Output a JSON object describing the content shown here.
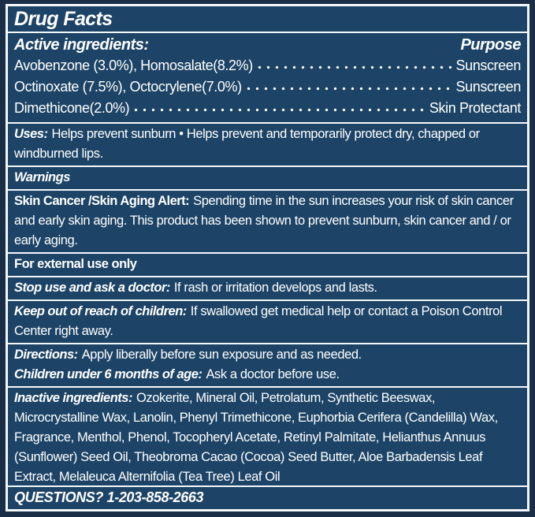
{
  "colors": {
    "bg": "#1d4466",
    "frame": "#1a2f47",
    "rule": "#f4f8fb",
    "text": "#ffffff"
  },
  "title": "Drug Facts",
  "active": {
    "heading": "Active ingredients:",
    "purpose_heading": "Purpose",
    "rows": [
      {
        "name": "Avobenzone (3.0%), Homosalate(8.2%)",
        "purpose": "Sunscreen"
      },
      {
        "name": "Octinoxate (7.5%), Octocrylene(7.0%)",
        "purpose": "Sunscreen"
      },
      {
        "name": "Dimethicone(2.0%)",
        "purpose": "Skin Protectant"
      }
    ]
  },
  "uses": {
    "label": "Uses:",
    "text": "Helps prevent sunburn • Helps prevent and temporarily protect dry, chapped or windburned lips."
  },
  "warnings": {
    "heading": "Warnings"
  },
  "skin_alert": {
    "label": "Skin Cancer /Skin Aging Alert:",
    "text": "Spending time in the sun increases your risk of skin cancer and early skin aging. This product has been shown to prevent sunburn, skin cancer and / or early aging."
  },
  "external_use": {
    "text": "For external use only"
  },
  "stop_use": {
    "label": "Stop use and ask a doctor:",
    "text": "If rash or irritation develops and lasts."
  },
  "keep_out": {
    "label": "Keep out of reach of children:",
    "text": "If swallowed get medical help or contact a Poison Control Center right away."
  },
  "directions": {
    "label": "Directions:",
    "text": "Apply liberally before sun exposure and as needed."
  },
  "children": {
    "label": "Children under 6 months of age:",
    "text": "Ask a doctor before use."
  },
  "inactive": {
    "label": "Inactive ingredients:",
    "text": "Ozokerite, Mineral Oil, Petrolatum, Synthetic Beeswax, Microcrystalline Wax, Lanolin, Phenyl Trimethicone, Euphorbia Cerifera (Candelilla) Wax, Fragrance, Menthol, Phenol, Tocopheryl Acetate, Retinyl Palmitate, Helianthus Annuus (Sunflower) Seed Oil, Theobroma Cacao (Cocoa) Seed Butter, Aloe Barbadensis Leaf Extract, Melaleuca Alternifolia (Tea Tree) Leaf Oil"
  },
  "questions": {
    "text": "QUESTIONS? 1-203-858-2663"
  }
}
